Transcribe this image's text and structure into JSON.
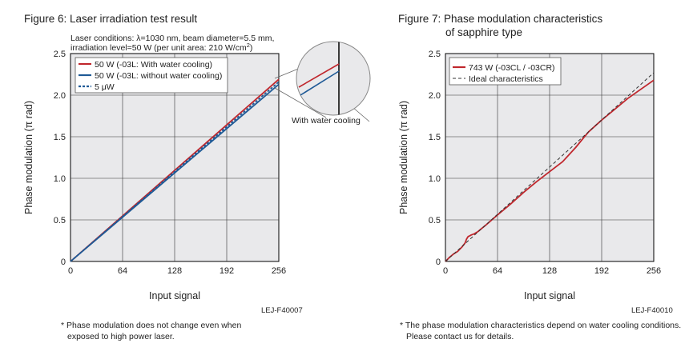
{
  "fig6": {
    "title": "Figure 6: Laser irradiation test result",
    "conditions_line1": "Laser conditions: λ=1030 nm, beam diameter=5.5 mm,",
    "conditions_line2_prefix": "irradiation level=50 W (per unit area: 210 W/cm",
    "conditions_line2_sup": "2",
    "conditions_line2_suffix": ")",
    "inset_label": "With water cooling",
    "code": "LEJ-F40007",
    "note_line1": "* Phase modulation does not change even when",
    "note_line2": "exposed to high power laser."
  },
  "fig7": {
    "title_line1": "Figure 7: Phase modulation characteristics",
    "title_line2": "of sapphire type",
    "code": "LEJ-F40010",
    "note_line1": "* The phase modulation characteristics depend on water cooling conditions.",
    "note_line2": "Please contact us for details."
  },
  "chart_data": [
    {
      "type": "line",
      "xlabel": "Input signal",
      "ylabel": "Phase modulation (π rad)",
      "xlim": [
        0,
        256
      ],
      "ylim": [
        0,
        2.5
      ],
      "xticks": [
        "0",
        "64",
        "128",
        "192",
        "256"
      ],
      "yticks": [
        "0",
        "0.5",
        "1.0",
        "1.5",
        "2.0",
        "2.5"
      ],
      "grid": true,
      "legend_position": "top-left",
      "series": [
        {
          "name": "50 W (-03L: With water cooling)",
          "color": "#c0272d",
          "dash": "solid",
          "x": [
            0,
            256
          ],
          "y": [
            0,
            2.19
          ]
        },
        {
          "name": "50 W (-03L: without water cooling)",
          "color": "#1f5a96",
          "dash": "solid",
          "x": [
            0,
            256
          ],
          "y": [
            0,
            2.13
          ]
        },
        {
          "name": "5 μW",
          "color": "#1f5a96",
          "dash": "dashed",
          "x": [
            0,
            256
          ],
          "y": [
            0,
            2.16
          ]
        }
      ]
    },
    {
      "type": "line",
      "xlabel": "Input signal",
      "ylabel": "Phase modulation (π rad)",
      "xlim": [
        0,
        256
      ],
      "ylim": [
        0,
        2.5
      ],
      "xticks": [
        "0",
        "64",
        "128",
        "192",
        "256"
      ],
      "yticks": [
        "0",
        "0.5",
        "1.0",
        "1.5",
        "2.0",
        "2.5"
      ],
      "grid": true,
      "legend_position": "top-left",
      "series": [
        {
          "name": "743 W (-03CL / -03CR)",
          "color": "#c0272d",
          "dash": "solid",
          "x": [
            0,
            5,
            10,
            15,
            20,
            24,
            26,
            28,
            30,
            32,
            35,
            40,
            50,
            64,
            80,
            96,
            112,
            128,
            144,
            160,
            170,
            176,
            192,
            208,
            224,
            240,
            256
          ],
          "y": [
            0,
            0.05,
            0.09,
            0.12,
            0.17,
            0.22,
            0.27,
            0.3,
            0.31,
            0.32,
            0.33,
            0.36,
            0.44,
            0.56,
            0.69,
            0.83,
            0.96,
            1.08,
            1.2,
            1.37,
            1.49,
            1.56,
            1.7,
            1.83,
            1.96,
            2.07,
            2.18
          ]
        },
        {
          "name": "Ideal characteristics",
          "color": "#333333",
          "dash": "dashed",
          "x": [
            0,
            256
          ],
          "y": [
            0,
            2.27
          ]
        }
      ]
    }
  ]
}
